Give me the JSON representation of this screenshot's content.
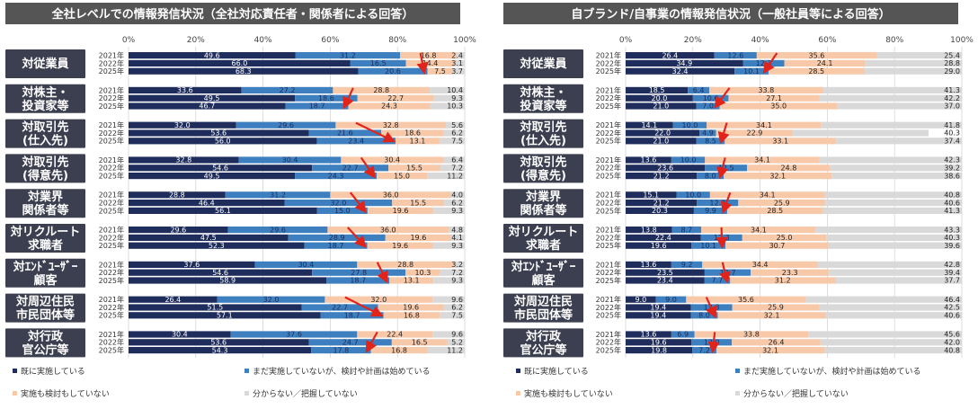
{
  "colors": {
    "done": "#1f2d5c",
    "started": "#3d7fbf",
    "none": "#f8c9a9",
    "unknown": "#d9d9d9",
    "header": "#555555",
    "label_box": "#3b3f4f",
    "arrow": "#e0241b"
  },
  "legend": {
    "done": "既に実施している",
    "started": "まだ実施していないが、検討や計画は始めている",
    "none": "実施も検討もしていない",
    "unknown": "分からない／把握していない"
  },
  "chart_data": [
    {
      "type": "bar",
      "orientation": "horizontal-stacked-100",
      "title": "全社レベルでの情報発信状況（全社対応責任者・関係者による回答）",
      "xlim": [
        0,
        100
      ],
      "xticks": [
        "0%",
        "20%",
        "40%",
        "60%",
        "80%",
        "100%"
      ],
      "series_names": [
        "既に実施している",
        "まだ実施していないが、検討や計画は始めている",
        "実施も検討もしていない",
        "分からない／把握していない"
      ],
      "groups": [
        {
          "label": [
            "対従業員"
          ],
          "rows": [
            {
              "year": "2021年",
              "values": [
                49.6,
                31.2,
                16.8,
                2.4
              ]
            },
            {
              "year": "2022年",
              "values": [
                66.0,
                16.5,
                14.4,
                3.1
              ]
            },
            {
              "year": "2025年",
              "values": [
                68.3,
                20.6,
                7.5,
                3.7
              ]
            }
          ]
        },
        {
          "label": [
            "対株主・",
            "投資家等"
          ],
          "rows": [
            {
              "year": "2021年",
              "values": [
                33.6,
                27.2,
                28.8,
                10.4
              ]
            },
            {
              "year": "2022年",
              "values": [
                49.5,
                18.6,
                22.7,
                9.3
              ]
            },
            {
              "year": "2025年",
              "values": [
                46.7,
                18.7,
                24.3,
                10.3
              ]
            }
          ]
        },
        {
          "label": [
            "対取引先",
            "(仕入先)"
          ],
          "rows": [
            {
              "year": "2021年",
              "values": [
                32.0,
                29.6,
                32.8,
                5.6
              ]
            },
            {
              "year": "2022年",
              "values": [
                53.6,
                21.6,
                18.6,
                6.2
              ]
            },
            {
              "year": "2025年",
              "values": [
                56.0,
                23.4,
                13.1,
                7.5
              ]
            }
          ]
        },
        {
          "label": [
            "対取引先",
            "(得意先)"
          ],
          "rows": [
            {
              "year": "2021年",
              "values": [
                32.8,
                30.4,
                30.4,
                6.4
              ]
            },
            {
              "year": "2022年",
              "values": [
                54.6,
                22.7,
                15.5,
                7.2
              ]
            },
            {
              "year": "2025年",
              "values": [
                49.5,
                24.3,
                15.0,
                11.2
              ]
            }
          ]
        },
        {
          "label": [
            "対業界",
            "関係者等"
          ],
          "rows": [
            {
              "year": "2021年",
              "values": [
                28.8,
                31.2,
                36.0,
                4.0
              ]
            },
            {
              "year": "2022年",
              "values": [
                46.4,
                32.0,
                15.5,
                6.2
              ]
            },
            {
              "year": "2025年",
              "values": [
                56.1,
                15.0,
                19.6,
                9.3
              ]
            }
          ]
        },
        {
          "label": [
            "対リクルート",
            "求職者"
          ],
          "rows": [
            {
              "year": "2021年",
              "values": [
                29.6,
                29.6,
                36.0,
                4.8
              ]
            },
            {
              "year": "2022年",
              "values": [
                47.5,
                28.9,
                19.6,
                4.1
              ]
            },
            {
              "year": "2025年",
              "values": [
                52.3,
                18.7,
                19.6,
                9.3
              ]
            }
          ]
        },
        {
          "label": [
            "対ｴﾝﾄﾞﾕｰｻﾞｰ",
            "顧客"
          ],
          "rows": [
            {
              "year": "2021年",
              "values": [
                37.6,
                30.4,
                28.8,
                3.2
              ]
            },
            {
              "year": "2022年",
              "values": [
                54.6,
                27.8,
                10.3,
                7.2
              ]
            },
            {
              "year": "2025年",
              "values": [
                58.9,
                18.7,
                13.1,
                9.3
              ]
            }
          ]
        },
        {
          "label": [
            "対周辺住民",
            "市民団体等"
          ],
          "rows": [
            {
              "year": "2021年",
              "values": [
                26.4,
                32.0,
                32.0,
                9.6
              ]
            },
            {
              "year": "2022年",
              "values": [
                51.5,
                22.7,
                19.6,
                6.2
              ]
            },
            {
              "year": "2025年",
              "values": [
                57.1,
                18.7,
                16.8,
                7.5
              ]
            }
          ]
        },
        {
          "label": [
            "対行政",
            "官公庁等"
          ],
          "rows": [
            {
              "year": "2021年",
              "values": [
                30.4,
                37.6,
                22.4,
                9.6
              ]
            },
            {
              "year": "2022年",
              "values": [
                53.6,
                24.7,
                16.5,
                5.2
              ]
            },
            {
              "year": "2025年",
              "values": [
                54.3,
                17.8,
                16.8,
                11.2
              ]
            }
          ]
        }
      ]
    },
    {
      "type": "bar",
      "orientation": "horizontal-stacked-100",
      "title": "自ブランド/自事業の情報発信状況（一般社員等による回答）",
      "xlim": [
        0,
        100
      ],
      "xticks": [
        "0%",
        "20%",
        "40%",
        "60%",
        "80%",
        "100%"
      ],
      "series_names": [
        "既に実施している",
        "まだ実施していないが、検討や計画は始めている",
        "実施も検討もしていない",
        "分からない／把握していない"
      ],
      "groups": [
        {
          "label": [
            "対従業員"
          ],
          "rows": [
            {
              "year": "2021年",
              "values": [
                26.4,
                12.6,
                35.6,
                25.4
              ]
            },
            {
              "year": "2022年",
              "values": [
                34.9,
                12.3,
                24.1,
                28.8
              ]
            },
            {
              "year": "2025年",
              "values": [
                32.4,
                10.1,
                28.5,
                29.0
              ]
            }
          ]
        },
        {
          "label": [
            "対株主・",
            "投資家等"
          ],
          "rows": [
            {
              "year": "2021年",
              "values": [
                18.5,
                6.4,
                33.8,
                41.3
              ]
            },
            {
              "year": "2022年",
              "values": [
                20.0,
                10.6,
                27.1,
                42.2
              ]
            },
            {
              "year": "2025年",
              "values": [
                21.0,
                7.0,
                35.0,
                37.0
              ]
            }
          ]
        },
        {
          "label": [
            "対取引先",
            "(仕入先)"
          ],
          "rows": [
            {
              "year": "2021年",
              "values": [
                14.1,
                10.0,
                34.1,
                41.8
              ]
            },
            {
              "year": "2022年",
              "values": [
                22.0,
                4.9,
                22.9,
                40.3
              ]
            },
            {
              "year": "2025年",
              "values": [
                21.0,
                8.5,
                33.1,
                37.4
              ]
            }
          ]
        },
        {
          "label": [
            "対取引先",
            "(得意先)"
          ],
          "rows": [
            {
              "year": "2021年",
              "values": [
                13.6,
                10.0,
                34.1,
                42.3
              ]
            },
            {
              "year": "2022年",
              "values": [
                23.6,
                12.5,
                24.8,
                39.2
              ]
            },
            {
              "year": "2025年",
              "values": [
                21.2,
                8.0,
                32.1,
                38.6
              ]
            }
          ]
        },
        {
          "label": [
            "対業界",
            "関係者等"
          ],
          "rows": [
            {
              "year": "2021年",
              "values": [
                15.1,
                10.0,
                34.1,
                40.8
              ]
            },
            {
              "year": "2022年",
              "values": [
                21.2,
                12.3,
                25.9,
                40.6
              ]
            },
            {
              "year": "2025年",
              "values": [
                20.3,
                9.9,
                28.5,
                41.3
              ]
            }
          ]
        },
        {
          "label": [
            "対リクルート",
            "求職者"
          ],
          "rows": [
            {
              "year": "2021年",
              "values": [
                13.8,
                8.7,
                34.1,
                43.3
              ]
            },
            {
              "year": "2022年",
              "values": [
                22.4,
                12.3,
                25.0,
                40.3
              ]
            },
            {
              "year": "2025年",
              "values": [
                19.6,
                10.1,
                30.7,
                39.6
              ]
            }
          ]
        },
        {
          "label": [
            "対ｴﾝﾄﾞﾕｰｻﾞｰ",
            "顧客"
          ],
          "rows": [
            {
              "year": "2021年",
              "values": [
                13.6,
                9.2,
                34.4,
                42.8
              ]
            },
            {
              "year": "2022年",
              "values": [
                23.5,
                13.7,
                23.3,
                39.4
              ]
            },
            {
              "year": "2025年",
              "values": [
                23.4,
                7.7,
                31.2,
                37.7
              ]
            }
          ]
        },
        {
          "label": [
            "対周辺住民",
            "市民団体等"
          ],
          "rows": [
            {
              "year": "2021年",
              "values": [
                9.0,
                9.0,
                35.6,
                46.4
              ]
            },
            {
              "year": "2022年",
              "values": [
                19.4,
                12.3,
                25.9,
                42.5
              ]
            },
            {
              "year": "2025年",
              "values": [
                19.4,
                8.0,
                32.1,
                40.6
              ]
            }
          ]
        },
        {
          "label": [
            "対行政",
            "官公庁等"
          ],
          "rows": [
            {
              "year": "2021年",
              "values": [
                13.6,
                6.9,
                33.8,
                45.6
              ]
            },
            {
              "year": "2022年",
              "values": [
                19.6,
                12.0,
                26.4,
                42.0
              ]
            },
            {
              "year": "2025年",
              "values": [
                19.8,
                7.2,
                32.1,
                40.8
              ]
            }
          ]
        }
      ]
    }
  ]
}
